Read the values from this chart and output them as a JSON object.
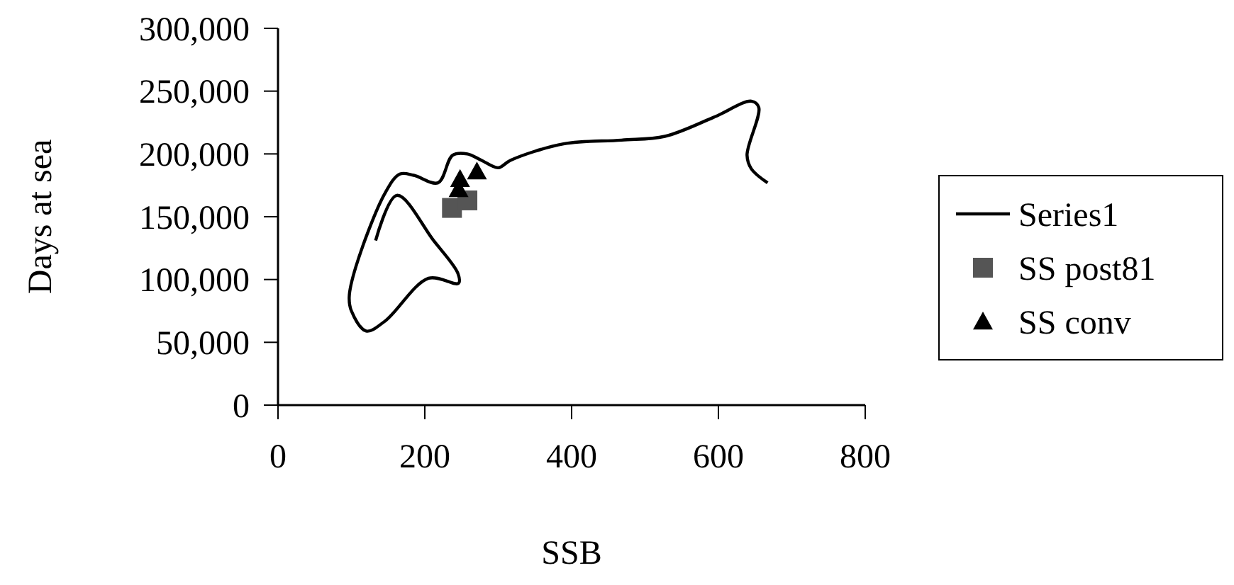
{
  "chart_data": {
    "type": "line",
    "xlabel": "SSB",
    "ylabel": "Days at sea",
    "xlim": [
      0,
      800
    ],
    "xticks": [
      0,
      200,
      400,
      600,
      800
    ],
    "ylim": [
      0,
      300000
    ],
    "yticks": [
      {
        "value": 0,
        "label": "0"
      },
      {
        "value": 50000,
        "label": "50,000"
      },
      {
        "value": 100000,
        "label": "100,000"
      },
      {
        "value": 150000,
        "label": "150,000"
      },
      {
        "value": 200000,
        "label": "200,000"
      },
      {
        "value": 250000,
        "label": "250,000"
      },
      {
        "value": 300000,
        "label": "300,000"
      }
    ],
    "grid": false,
    "legend": "right",
    "series": [
      {
        "name": "Series1",
        "color": "#000000",
        "marker": "none",
        "x": [
          133,
          162,
          212,
          245,
          246,
          205,
          146,
          120,
          100,
          97,
          106,
          146,
          166,
          185,
          218,
          238,
          258,
          277,
          300,
          317,
          389,
          468,
          527,
          593,
          645,
          655,
          639,
          645,
          667
        ],
        "values": [
          131000,
          167000,
          131000,
          105000,
          97000,
          101000,
          67000,
          59000,
          75000,
          86000,
          110000,
          169000,
          184000,
          183000,
          177000,
          199000,
          200000,
          195000,
          189000,
          195000,
          208000,
          211000,
          214000,
          229000,
          242000,
          237000,
          199000,
          188000,
          177000
        ]
      },
      {
        "name": "SS post81",
        "type": "scatter",
        "color": "#555555",
        "marker": "square",
        "x": [
          237,
          258
        ],
        "values": [
          157000,
          163000
        ]
      },
      {
        "name": "SS conv",
        "type": "scatter",
        "color": "#000000",
        "marker": "triangle",
        "x": [
          248,
          271,
          246
        ],
        "values": [
          180000,
          186000,
          172000
        ]
      }
    ]
  }
}
